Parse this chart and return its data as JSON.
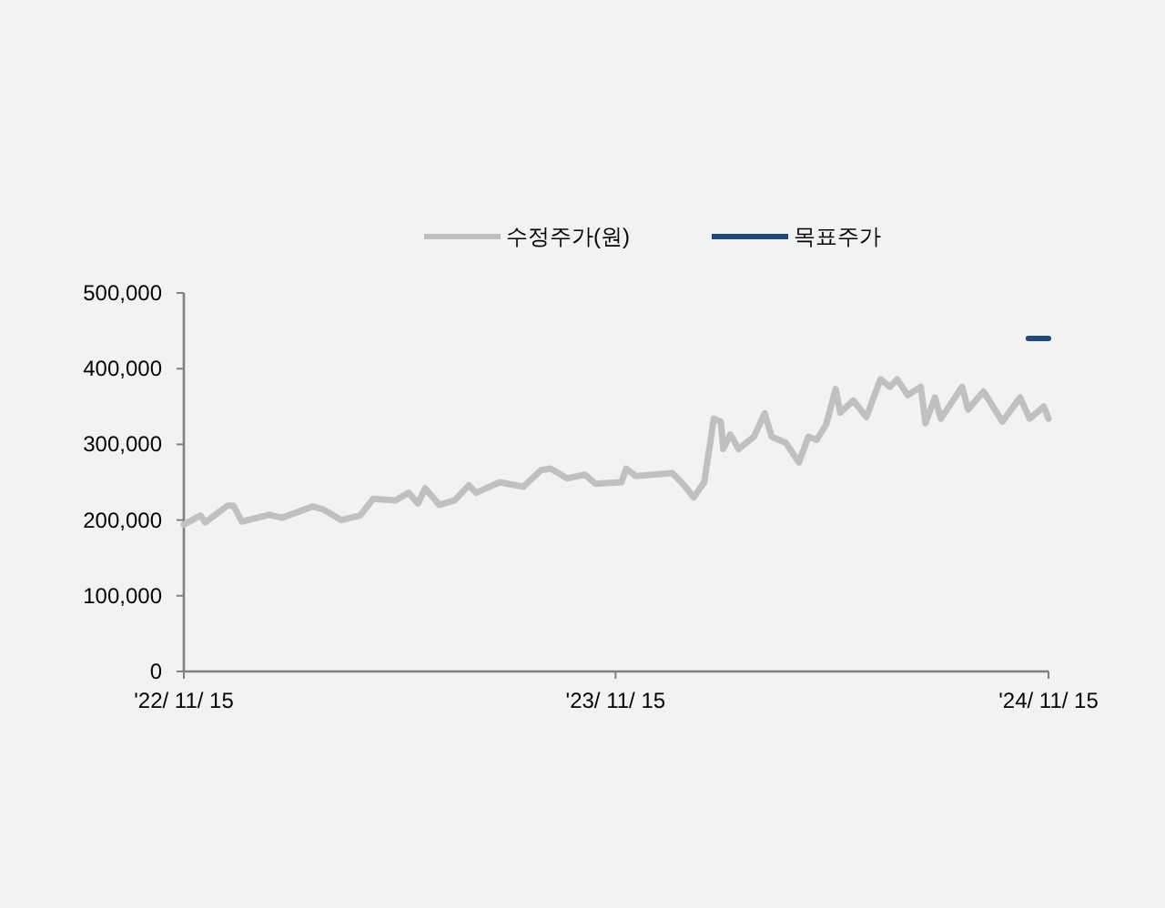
{
  "chart_data": {
    "type": "line",
    "legend": "top",
    "grid": false,
    "marker": "none",
    "line_style": "solid",
    "xlim": [
      "2022-11-15",
      "2024-11-15"
    ],
    "xticks": [
      {
        "value": "2022-11-15",
        "label": "'22/ 11/ 15"
      },
      {
        "value": "2023-11-15",
        "label": "'23/ 11/ 15"
      },
      {
        "value": "2024-11-15",
        "label": "'24/ 11/ 15"
      }
    ],
    "ylim": [
      0,
      500000
    ],
    "yticks": [
      {
        "value": 0,
        "label": "0"
      },
      {
        "value": 100000,
        "label": "100,000"
      },
      {
        "value": 200000,
        "label": "200,000"
      },
      {
        "value": 300000,
        "label": "300,000"
      },
      {
        "value": 400000,
        "label": "400,000"
      },
      {
        "value": 500000,
        "label": "500,000"
      }
    ],
    "series": [
      {
        "name": "수정주가(원)",
        "color": "#c0c0c0",
        "x": [
          "2022-11-15",
          "2022-11-29",
          "2022-12-03",
          "2022-12-22",
          "2022-12-27",
          "2023-01-03",
          "2023-01-26",
          "2023-02-06",
          "2023-03-04",
          "2023-03-13",
          "2023-03-28",
          "2023-04-13",
          "2023-04-24",
          "2023-05-13",
          "2023-05-24",
          "2023-06-01",
          "2023-06-07",
          "2023-06-19",
          "2023-07-02",
          "2023-07-14",
          "2023-07-20",
          "2023-08-09",
          "2023-08-29",
          "2023-09-13",
          "2023-09-21",
          "2023-10-05",
          "2023-10-20",
          "2023-10-29",
          "2023-11-20",
          "2023-11-24",
          "2023-12-02",
          "2024-01-02",
          "2024-01-12",
          "2024-01-20",
          "2024-01-29",
          "2024-02-06",
          "2024-02-12",
          "2024-02-14",
          "2024-02-20",
          "2024-02-27",
          "2024-03-11",
          "2024-03-20",
          "2024-03-26",
          "2024-04-07",
          "2024-04-18",
          "2024-04-26",
          "2024-05-03",
          "2024-05-11",
          "2024-05-19",
          "2024-05-23",
          "2024-06-03",
          "2024-06-14",
          "2024-06-26",
          "2024-07-04",
          "2024-07-10",
          "2024-07-19",
          "2024-07-30",
          "2024-08-03",
          "2024-08-11",
          "2024-08-16",
          "2024-09-03",
          "2024-09-08",
          "2024-09-21",
          "2024-10-07",
          "2024-10-22",
          "2024-10-30",
          "2024-11-11",
          "2024-11-15"
        ],
        "values": [
          194000,
          206000,
          197000,
          219000,
          219000,
          198000,
          207000,
          203000,
          218000,
          214000,
          200000,
          206000,
          228000,
          226000,
          236000,
          222000,
          242000,
          220000,
          226000,
          246000,
          236000,
          250000,
          244000,
          266000,
          268000,
          255000,
          260000,
          248000,
          250000,
          268000,
          258000,
          262000,
          246000,
          230000,
          250000,
          334000,
          330000,
          294000,
          313000,
          294000,
          310000,
          341000,
          310000,
          302000,
          276000,
          310000,
          306000,
          326000,
          373000,
          342000,
          358000,
          336000,
          386000,
          376000,
          386000,
          365000,
          376000,
          328000,
          362000,
          334000,
          376000,
          346000,
          370000,
          330000,
          362000,
          334000,
          350000,
          334000
        ]
      },
      {
        "name": "목표주가",
        "color": "#1f497d",
        "x": [
          "2024-10-29",
          "2024-11-15"
        ],
        "values": [
          440000,
          440000
        ]
      }
    ]
  }
}
